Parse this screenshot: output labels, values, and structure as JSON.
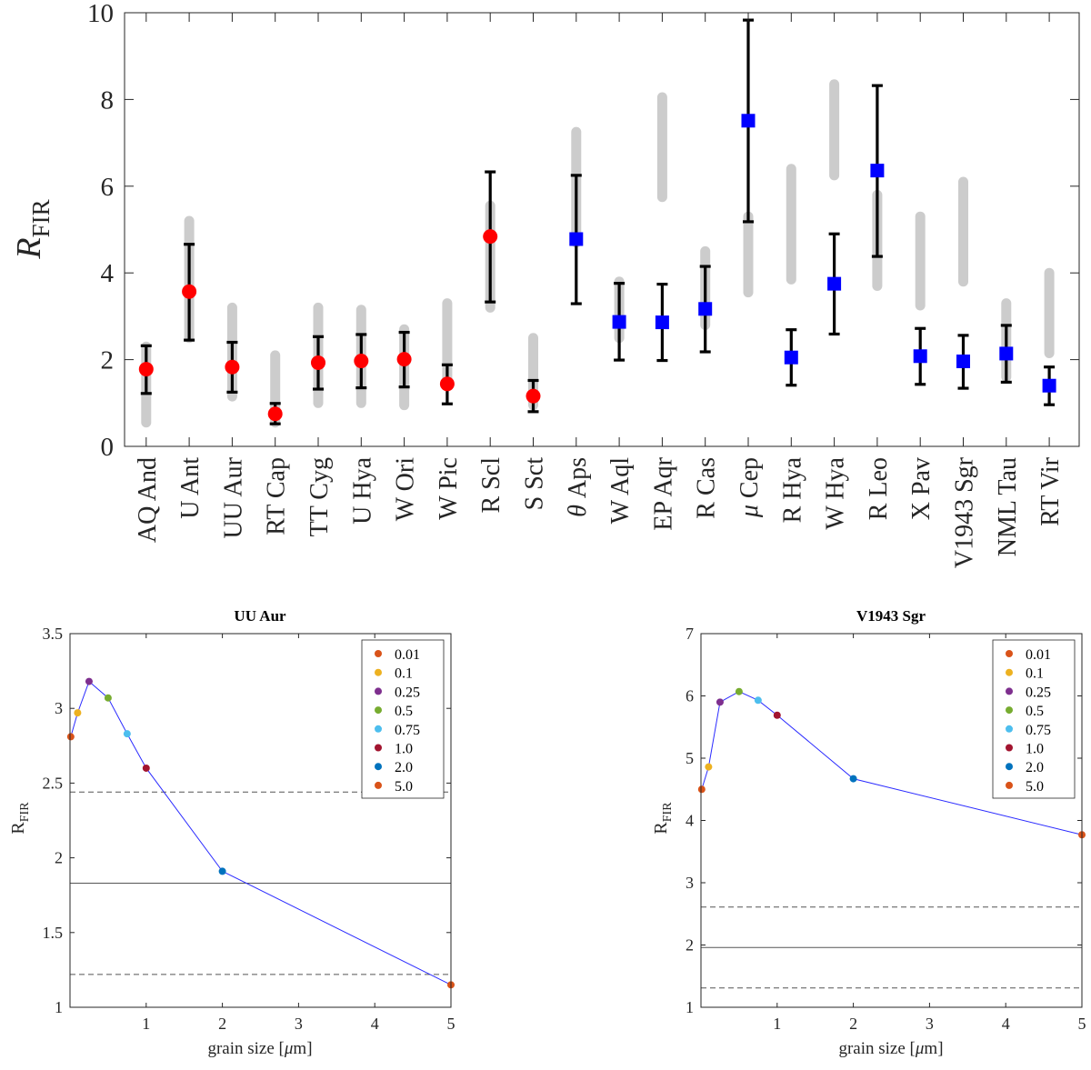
{
  "chart_data": [
    {
      "type": "scatter",
      "ylabel": "R",
      "ylabel_sub": "FIR",
      "ylim": [
        0,
        10
      ],
      "yticks": [
        "0",
        "2",
        "4",
        "6",
        "8",
        "10"
      ],
      "categories": [
        {
          "name": "AQ And"
        },
        {
          "name": "U Ant"
        },
        {
          "name": "UU Aur"
        },
        {
          "name": "RT Cap"
        },
        {
          "name": "TT Cyg"
        },
        {
          "name": "U Hya"
        },
        {
          "name": "W Ori"
        },
        {
          "name": "W Pic"
        },
        {
          "name": "R Scl"
        },
        {
          "name": "S Sct"
        },
        {
          "greek": "θ",
          "name": " Aps"
        },
        {
          "name": "W Aql"
        },
        {
          "name": "EP Aqr"
        },
        {
          "name": "R Cas"
        },
        {
          "greek": "μ",
          "name": " Cep"
        },
        {
          "name": "R Hya"
        },
        {
          "name": "W Hya"
        },
        {
          "name": "R Leo"
        },
        {
          "name": "X Pav"
        },
        {
          "name": "V1943 Sgr"
        },
        {
          "name": "NML Tau"
        },
        {
          "name": "RT Vir"
        }
      ],
      "series": [
        {
          "name": "red circles",
          "marker": "circle",
          "color": "#ff0000",
          "points": [
            {
              "i": 0,
              "y": 1.78,
              "lo": 1.22,
              "hi": 2.32
            },
            {
              "i": 1,
              "y": 3.57,
              "lo": 2.45,
              "hi": 4.66
            },
            {
              "i": 2,
              "y": 1.83,
              "lo": 1.25,
              "hi": 2.4
            },
            {
              "i": 3,
              "y": 0.75,
              "lo": 0.52,
              "hi": 0.99
            },
            {
              "i": 4,
              "y": 1.93,
              "lo": 1.32,
              "hi": 2.53
            },
            {
              "i": 5,
              "y": 1.97,
              "lo": 1.35,
              "hi": 2.58
            },
            {
              "i": 6,
              "y": 2.01,
              "lo": 1.37,
              "hi": 2.63
            },
            {
              "i": 7,
              "y": 1.44,
              "lo": 0.98,
              "hi": 1.88
            },
            {
              "i": 8,
              "y": 4.84,
              "lo": 3.33,
              "hi": 6.33
            },
            {
              "i": 9,
              "y": 1.16,
              "lo": 0.8,
              "hi": 1.52
            }
          ]
        },
        {
          "name": "blue squares",
          "marker": "square",
          "color": "#0000ff",
          "points": [
            {
              "i": 10,
              "y": 4.78,
              "lo": 3.29,
              "hi": 6.25
            },
            {
              "i": 11,
              "y": 2.87,
              "lo": 1.99,
              "hi": 3.76
            },
            {
              "i": 12,
              "y": 2.86,
              "lo": 1.98,
              "hi": 3.74
            },
            {
              "i": 13,
              "y": 3.17,
              "lo": 2.18,
              "hi": 4.15
            },
            {
              "i": 14,
              "y": 7.51,
              "lo": 5.18,
              "hi": 9.83
            },
            {
              "i": 15,
              "y": 2.05,
              "lo": 1.41,
              "hi": 2.69
            },
            {
              "i": 16,
              "y": 3.75,
              "lo": 2.59,
              "hi": 4.9
            },
            {
              "i": 17,
              "y": 6.36,
              "lo": 4.38,
              "hi": 8.32
            },
            {
              "i": 18,
              "y": 2.08,
              "lo": 1.43,
              "hi": 2.72
            },
            {
              "i": 19,
              "y": 1.96,
              "lo": 1.34,
              "hi": 2.56
            },
            {
              "i": 20,
              "y": 2.14,
              "lo": 1.48,
              "hi": 2.79
            },
            {
              "i": 21,
              "y": 1.4,
              "lo": 0.96,
              "hi": 1.83
            }
          ]
        }
      ],
      "grey_ranges": [
        {
          "i": 0,
          "lo": 0.55,
          "hi": 2.3
        },
        {
          "i": 1,
          "lo": 2.5,
          "hi": 5.2
        },
        {
          "i": 2,
          "lo": 1.15,
          "hi": 3.2
        },
        {
          "i": 3,
          "lo": 0.55,
          "hi": 2.1
        },
        {
          "i": 4,
          "lo": 1.0,
          "hi": 3.2
        },
        {
          "i": 5,
          "lo": 1.0,
          "hi": 3.15
        },
        {
          "i": 6,
          "lo": 0.95,
          "hi": 2.7
        },
        {
          "i": 7,
          "lo": 1.4,
          "hi": 3.3
        },
        {
          "i": 8,
          "lo": 3.2,
          "hi": 5.55
        },
        {
          "i": 9,
          "lo": 0.95,
          "hi": 2.5
        },
        {
          "i": 10,
          "lo": 4.7,
          "hi": 7.25
        },
        {
          "i": 11,
          "lo": 2.5,
          "hi": 3.8
        },
        {
          "i": 12,
          "lo": 5.75,
          "hi": 8.05
        },
        {
          "i": 13,
          "lo": 2.8,
          "hi": 4.5
        },
        {
          "i": 14,
          "lo": 3.55,
          "hi": 5.3
        },
        {
          "i": 15,
          "lo": 3.85,
          "hi": 6.4
        },
        {
          "i": 16,
          "lo": 6.25,
          "hi": 8.35
        },
        {
          "i": 17,
          "lo": 3.7,
          "hi": 5.8
        },
        {
          "i": 18,
          "lo": 3.25,
          "hi": 5.3
        },
        {
          "i": 19,
          "lo": 3.8,
          "hi": 6.1
        },
        {
          "i": 20,
          "lo": 1.6,
          "hi": 3.3
        },
        {
          "i": 21,
          "lo": 2.15,
          "hi": 4.0
        }
      ]
    },
    {
      "type": "line",
      "title": "UU Aur",
      "xlabel_prefix": "grain size [",
      "xlabel_mu": "μ",
      "xlabel_suffix": "m]",
      "ylabel": "R",
      "ylabel_sub": "FIR",
      "xlim": [
        0,
        5
      ],
      "ylim": [
        1,
        3.5
      ],
      "xticks": [
        {
          "v": 1,
          "label": "1"
        },
        {
          "v": 2,
          "label": "2"
        },
        {
          "v": 3,
          "label": "3"
        },
        {
          "v": 4,
          "label": "4"
        },
        {
          "v": 5,
          "label": "5"
        }
      ],
      "yticks": [
        {
          "v": 1,
          "label": "1"
        },
        {
          "v": 1.5,
          "label": "1.5"
        },
        {
          "v": 2,
          "label": "2"
        },
        {
          "v": 2.5,
          "label": "2.5"
        },
        {
          "v": 3,
          "label": "3"
        },
        {
          "v": 3.5,
          "label": "3.5"
        }
      ],
      "x": [
        0.01,
        0.1,
        0.25,
        0.5,
        0.75,
        1.0,
        2.0,
        5.0
      ],
      "y": [
        2.81,
        2.97,
        3.18,
        3.07,
        2.83,
        2.6,
        1.91,
        1.15
      ],
      "line_color": "#2b2bff",
      "hlines": [
        {
          "y": 2.44,
          "style": "dashed"
        },
        {
          "y": 1.83,
          "style": "solid"
        },
        {
          "y": 1.22,
          "style": "dashed"
        }
      ],
      "legend": [
        {
          "label": "0.01",
          "color": "#d95319"
        },
        {
          "label": "0.1",
          "color": "#edb120"
        },
        {
          "label": "0.25",
          "color": "#7e2f8e"
        },
        {
          "label": "0.5",
          "color": "#77ac30"
        },
        {
          "label": "0.75",
          "color": "#4dbeee"
        },
        {
          "label": "1.0",
          "color": "#a2142f"
        },
        {
          "label": "2.0",
          "color": "#0072bd"
        },
        {
          "label": "5.0",
          "color": "#d95319"
        }
      ],
      "legend_position": "top-right"
    },
    {
      "type": "line",
      "title": "V1943 Sgr",
      "xlabel_prefix": "grain size [",
      "xlabel_mu": "μ",
      "xlabel_suffix": "m]",
      "ylabel": "R",
      "ylabel_sub": "FIR",
      "xlim": [
        0,
        5
      ],
      "ylim": [
        1,
        7
      ],
      "xticks": [
        {
          "v": 1,
          "label": "1"
        },
        {
          "v": 2,
          "label": "2"
        },
        {
          "v": 3,
          "label": "3"
        },
        {
          "v": 4,
          "label": "4"
        },
        {
          "v": 5,
          "label": "5"
        }
      ],
      "yticks": [
        {
          "v": 1,
          "label": "1"
        },
        {
          "v": 2,
          "label": "2"
        },
        {
          "v": 3,
          "label": "3"
        },
        {
          "v": 4,
          "label": "4"
        },
        {
          "v": 5,
          "label": "5"
        },
        {
          "v": 6,
          "label": "6"
        },
        {
          "v": 7,
          "label": "7"
        }
      ],
      "x": [
        0.01,
        0.1,
        0.25,
        0.5,
        0.75,
        1.0,
        2.0,
        5.0
      ],
      "y": [
        4.5,
        4.86,
        5.9,
        6.07,
        5.93,
        5.69,
        4.67,
        3.77
      ],
      "line_color": "#2b2bff",
      "hlines": [
        {
          "y": 2.61,
          "style": "dashed"
        },
        {
          "y": 1.96,
          "style": "solid"
        },
        {
          "y": 1.31,
          "style": "dashed"
        }
      ],
      "legend": [
        {
          "label": "0.01",
          "color": "#d95319"
        },
        {
          "label": "0.1",
          "color": "#edb120"
        },
        {
          "label": "0.25",
          "color": "#7e2f8e"
        },
        {
          "label": "0.5",
          "color": "#77ac30"
        },
        {
          "label": "0.75",
          "color": "#4dbeee"
        },
        {
          "label": "1.0",
          "color": "#a2142f"
        },
        {
          "label": "2.0",
          "color": "#0072bd"
        },
        {
          "label": "5.0",
          "color": "#d95319"
        }
      ],
      "legend_position": "top-right"
    }
  ]
}
